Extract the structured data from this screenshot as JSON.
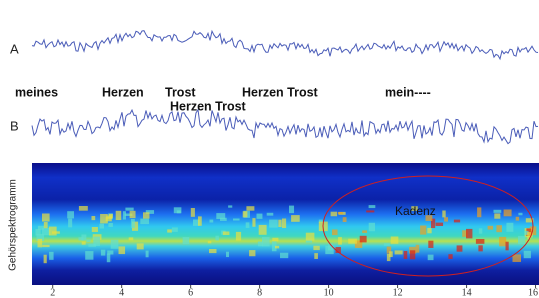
{
  "chart_data": {
    "type": "spectrogram",
    "panel_labels": [
      "A",
      "B"
    ],
    "lyrics": [
      "meines",
      "Herzen",
      "Trost",
      "Herzen Trost",
      "Herzen Trost",
      "mein----"
    ],
    "ylabel": "Gehörspektrogramm",
    "annotation": "Kadenz",
    "xlim": [
      1.4,
      16.1
    ],
    "xticks": [
      2,
      4,
      6,
      8,
      10,
      12,
      14,
      16
    ]
  }
}
